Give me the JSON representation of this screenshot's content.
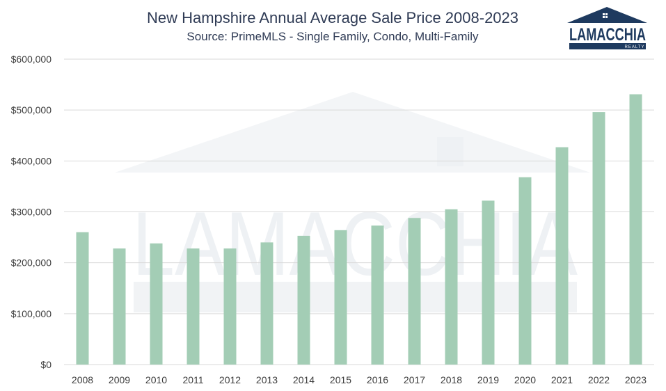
{
  "chart_data": {
    "type": "bar",
    "title": "New Hampshire Annual Average Sale Price 2008-2023",
    "subtitle": "Source: PrimeMLS - Single Family, Condo, Multi-Family",
    "categories": [
      "2008",
      "2009",
      "2010",
      "2011",
      "2012",
      "2013",
      "2014",
      "2015",
      "2016",
      "2017",
      "2018",
      "2019",
      "2020",
      "2021",
      "2022",
      "2023"
    ],
    "values": [
      260000,
      228000,
      238000,
      228000,
      228000,
      240000,
      253000,
      264000,
      273000,
      288000,
      305000,
      322000,
      368000,
      427000,
      496000,
      531000
    ],
    "xlabel": "",
    "ylabel": "",
    "ylim": [
      0,
      600000
    ],
    "yticks": [
      "$0",
      "$100,000",
      "$200,000",
      "$300,000",
      "$400,000",
      "$500,000",
      "$600,000"
    ],
    "ytick_values": [
      0,
      100000,
      200000,
      300000,
      400000,
      500000,
      600000
    ],
    "grid": true,
    "bar_color": "#a3cdb5"
  },
  "logo": {
    "name": "LAMACCHIA",
    "tagline": "REALTY",
    "color": "#1e3a5f"
  }
}
